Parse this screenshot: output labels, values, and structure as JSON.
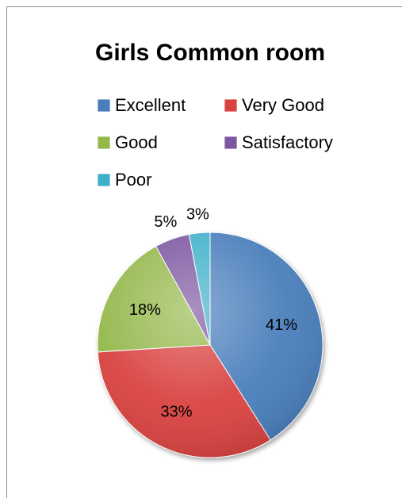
{
  "chart_data": {
    "type": "pie",
    "title": "Girls Common room",
    "categories": [
      "Excellent",
      "Very Good",
      "Good",
      "Satisfactory",
      "Poor"
    ],
    "values": [
      41,
      33,
      18,
      5,
      3
    ],
    "data_labels": [
      "41%",
      "33%",
      "18%",
      "5%",
      "3%"
    ],
    "colors": [
      "#4a7ebb",
      "#d9433f",
      "#94b84c",
      "#7c56a0",
      "#3fb0c8"
    ],
    "legend_position": "top",
    "start_angle": "12 o'clock, clockwise"
  }
}
